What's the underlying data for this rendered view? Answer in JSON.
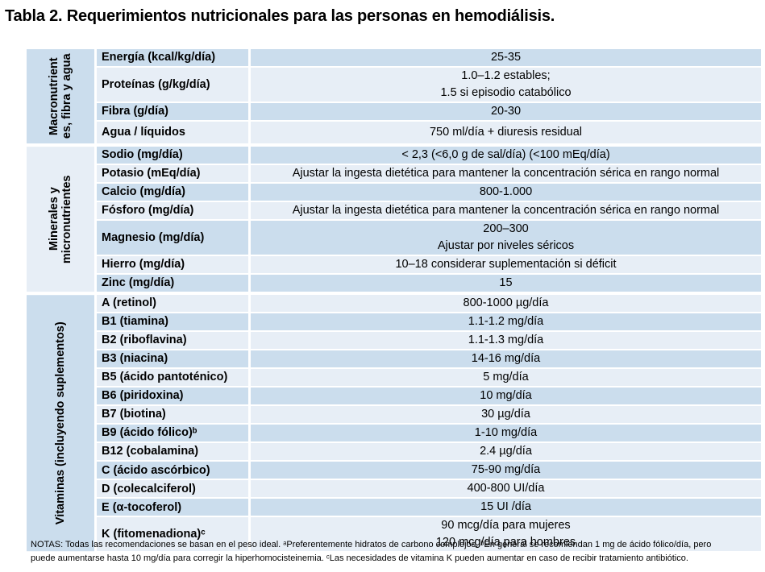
{
  "title": "Tabla 2. Requerimientos nutricionales para las personas en hemodiálisis.",
  "colors": {
    "band_dark": "#CBDDED",
    "band_light": "#E7EEF6",
    "text": "#000000",
    "background": "#FFFFFF"
  },
  "table": {
    "sections": [
      {
        "group_label": "Macronutrient\nes, fibra y agua",
        "group_shade": "dark",
        "rows": [
          {
            "label": "Energía (kcal/kg/día)",
            "value": "25-35",
            "shade": "dark",
            "size": "single"
          },
          {
            "label": "Proteínas (g/kg/día)",
            "value": "1.0–1.2 estables;\n1.5 si episodio catabólico",
            "shade": "light",
            "size": "double"
          },
          {
            "label": "Fibra (g/día)",
            "value": "20-30",
            "shade": "dark",
            "size": "single"
          },
          {
            "label": "Agua / líquidos",
            "value": "750 ml/día + diuresis residual",
            "shade": "light",
            "size": "tall"
          }
        ]
      },
      {
        "group_label": "Minerales y\nmicronutrientes",
        "group_shade": "light",
        "rows": [
          {
            "label": "Sodio (mg/día)",
            "value": "< 2,3 (<6,0 g de sal/día) (<100 mEq/día)",
            "shade": "dark",
            "size": "single"
          },
          {
            "label": "Potasio (mEq/día)",
            "value": "Ajustar la ingesta dietética para mantener la concentración sérica en rango normal",
            "shade": "light",
            "size": "single"
          },
          {
            "label": "Calcio (mg/día)",
            "value": "800-1.000",
            "shade": "dark",
            "size": "single"
          },
          {
            "label": "Fósforo (mg/día)",
            "value": "Ajustar la ingesta dietética para mantener la concentración sérica en rango normal",
            "shade": "light",
            "size": "single"
          },
          {
            "label": "Magnesio (mg/día)",
            "value": "200–300\nAjustar por niveles séricos",
            "shade": "dark",
            "size": "double"
          },
          {
            "label": "Hierro (mg/día)",
            "value": "10–18 considerar suplementación si déficit",
            "shade": "light",
            "size": "single"
          },
          {
            "label": "Zinc (mg/día)",
            "value": "15",
            "shade": "dark",
            "size": "single"
          }
        ]
      },
      {
        "group_label": "Vitaminas (incluyendo suplementos)",
        "group_shade": "dark",
        "rows": [
          {
            "label": "A (retinol)",
            "value": "800-1000 µg/día",
            "shade": "light",
            "size": "single"
          },
          {
            "label": "B1 (tiamina)",
            "value": "1.1-1.2 mg/día",
            "shade": "dark",
            "size": "single"
          },
          {
            "label": "B2 (riboflavina)",
            "value": "1.1-1.3 mg/día",
            "shade": "light",
            "size": "single"
          },
          {
            "label": "B3 (niacina)",
            "value": "14-16 mg/día",
            "shade": "dark",
            "size": "single"
          },
          {
            "label": "B5 (ácido pantoténico)",
            "value": "5 mg/día",
            "shade": "light",
            "size": "single"
          },
          {
            "label": "B6 (piridoxina)",
            "value": "10 mg/día",
            "shade": "dark",
            "size": "single"
          },
          {
            "label": "B7 (biotina)",
            "value": "30 µg/día",
            "shade": "light",
            "size": "single"
          },
          {
            "label": "B9 (ácido fólico)ᵇ",
            "value": "1-10 mg/día",
            "shade": "dark",
            "size": "single"
          },
          {
            "label": "B12 (cobalamina)",
            "value": "2.4 µg/día",
            "shade": "light",
            "size": "single"
          },
          {
            "label": "C (ácido ascórbico)",
            "value": "75-90 mg/día",
            "shade": "dark",
            "size": "single"
          },
          {
            "label": "D (colecalciferol)",
            "value": "400-800 UI/día",
            "shade": "light",
            "size": "single"
          },
          {
            "label": "E (α-tocoferol)",
            "value": "15 UI /día",
            "shade": "dark",
            "size": "single"
          },
          {
            "label": "K (fitomenadiona)ᶜ",
            "value": "90 mcg/día para mujeres\n120 mcg/día para hombres",
            "shade": "light",
            "size": "double"
          }
        ]
      }
    ]
  },
  "notes": "NOTAS: Todas las recomendaciones se basan en el peso ideal. ᵃPreferentemente hidratos de carbono complejos. ᵇEn general se recomiendan 1 mg de ácido fólico/día, pero\npuede aumentarse hasta 10 mg/día para corregir la hiperhomocisteinemia. ᶜLas necesidades de vitamina K pueden aumentar en caso de recibir tratamiento antibiótico."
}
